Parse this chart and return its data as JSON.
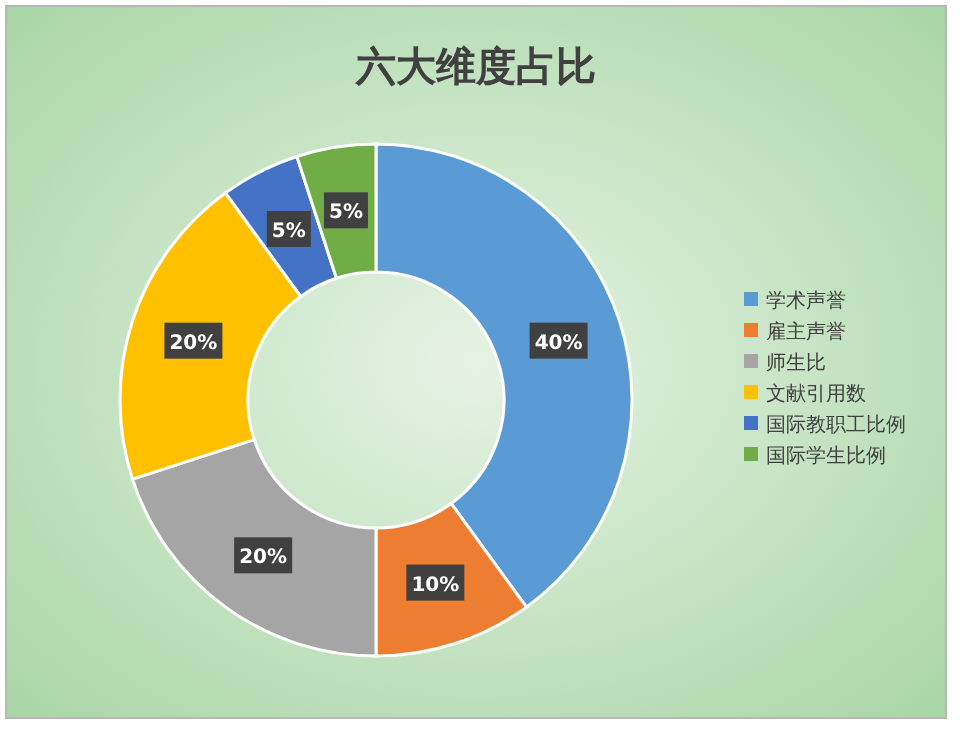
{
  "chart_data": {
    "type": "donut",
    "title": "六大维度占比",
    "categories": [
      "学术声誉",
      "雇主声誉",
      "师生比",
      "文献引用数",
      "国际教职工比例",
      "国际学生比例"
    ],
    "values": [
      40,
      10,
      20,
      20,
      5,
      5
    ],
    "colors": [
      "#5b9bd5",
      "#ed7d31",
      "#a5a5a5",
      "#ffc000",
      "#4472c4",
      "#70ad47"
    ],
    "value_labels": [
      "40%",
      "10%",
      "20%",
      "20%",
      "5%",
      "5%"
    ],
    "legend": "right"
  }
}
